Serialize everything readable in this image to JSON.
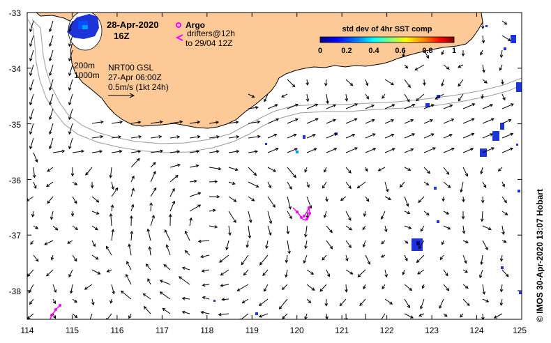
{
  "map": {
    "date_label": "28-Apr-2020",
    "time_label": "16Z",
    "lon_ticks": [
      "114",
      "115",
      "116",
      "117",
      "118",
      "119",
      "120",
      "121",
      "122",
      "123",
      "124",
      "125"
    ],
    "lat_ticks": [
      "-33",
      "-34",
      "-35",
      "-36",
      "-37",
      "-38"
    ],
    "legend": {
      "argo_label": "Argo",
      "drifters_label": "drifters@12h",
      "drifters_range": "to 29/04 12Z",
      "argo_color": "#ff00ff",
      "drifter_color": "#ff00ff"
    },
    "contours": {
      "label_200": "200m",
      "label_1000": "1000m"
    },
    "velocity_source": "NRT00 GSL",
    "velocity_time": "27-Apr 06:00Z",
    "scale_label": "0.5m/s (1kt 24h)",
    "colorbar": {
      "title": "std dev of 4hr SST comp",
      "ticks": [
        "0",
        "0.2",
        "0.4",
        "0.6",
        "0.8",
        "1"
      ],
      "colors": [
        "#00007f",
        "#0000ff",
        "#007fff",
        "#00ffff",
        "#7fff7f",
        "#ffff00",
        "#ff7f00",
        "#ff0000",
        "#7f0000"
      ]
    },
    "credit": "© IMOS 30-Apr-2020 13:07 Hobart",
    "land_color": "#fcc997"
  }
}
